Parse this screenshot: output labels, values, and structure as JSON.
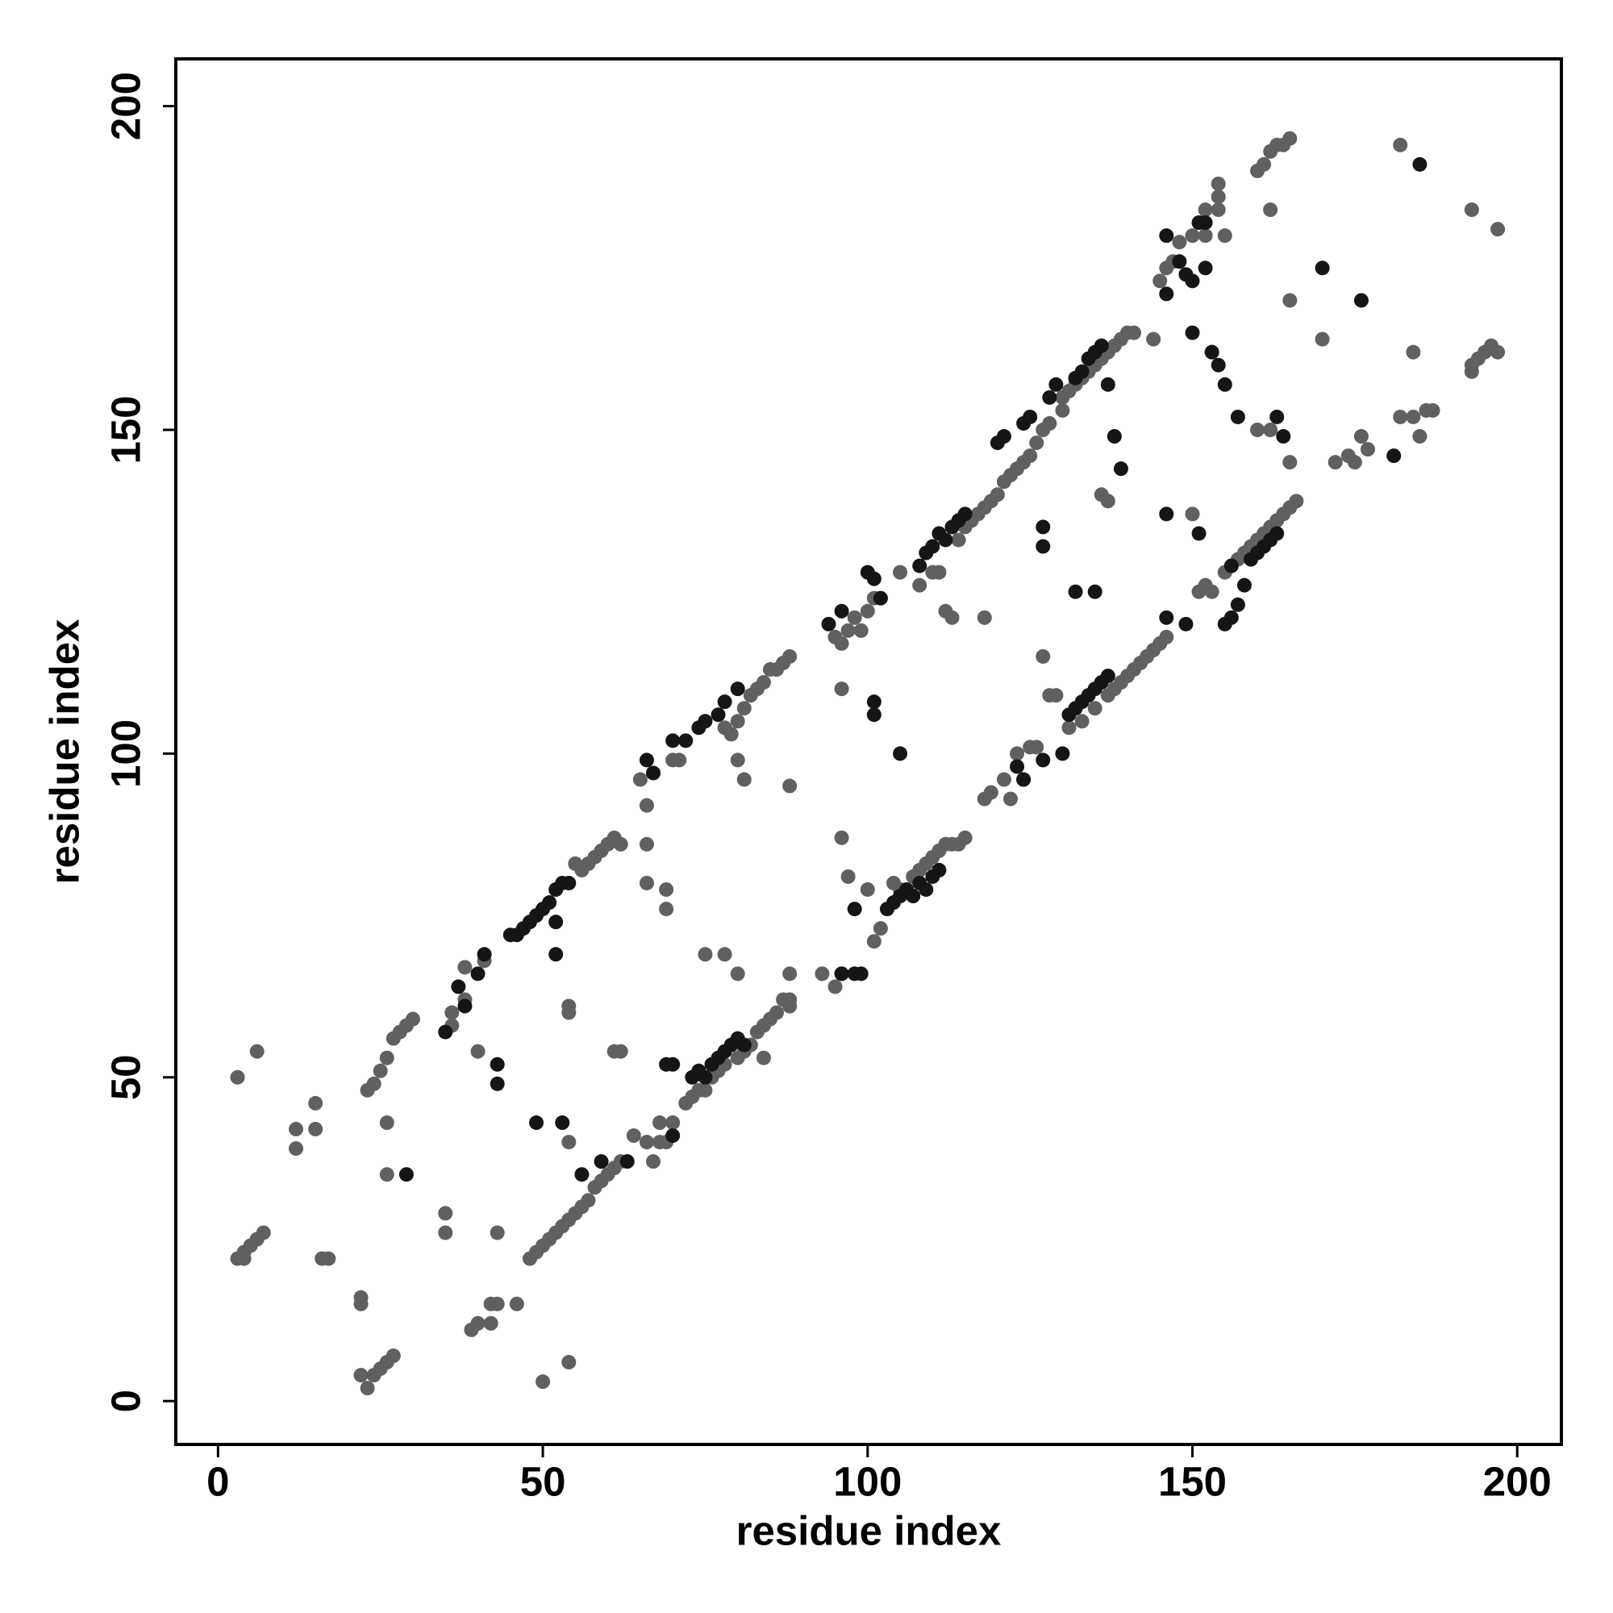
{
  "chart_data": {
    "type": "scatter",
    "x_label": "residue index",
    "y_label": "residue index",
    "xlim": [
      -6.5,
      206.8
    ],
    "ylim": [
      -6.7,
      207.3
    ],
    "xticks": [
      0,
      50,
      100,
      150,
      200
    ],
    "yticks": [
      0,
      50,
      100,
      150,
      200
    ],
    "series": [
      {
        "color": "#606060",
        "x": [
          3,
          4,
          5,
          6,
          7,
          4,
          3,
          6,
          12,
          12,
          15,
          15,
          16,
          17,
          22,
          22,
          22,
          23,
          24,
          25,
          26,
          27,
          23,
          24,
          25,
          26,
          27,
          28,
          29,
          30,
          26,
          26,
          35,
          35,
          36,
          36,
          38,
          38,
          39,
          40,
          40,
          41,
          42,
          43,
          42,
          43,
          46,
          48,
          49,
          50,
          51,
          52,
          53,
          54,
          55,
          56,
          57,
          58,
          59,
          60,
          61,
          62,
          50,
          54,
          54,
          54,
          54,
          61,
          62,
          55,
          56,
          57,
          58,
          59,
          60,
          61,
          62,
          66,
          66,
          65,
          67,
          66,
          69,
          69,
          70,
          67,
          68,
          68,
          69,
          70,
          66,
          64,
          75,
          78,
          80,
          72,
          73,
          74,
          75,
          76,
          77,
          78,
          80,
          81,
          82,
          83,
          84,
          85,
          86,
          87,
          88,
          88,
          84,
          88,
          78,
          79,
          80,
          81,
          82,
          83,
          84,
          85,
          86,
          87,
          88,
          71,
          79,
          80,
          81,
          88,
          93,
          95,
          96,
          95,
          96,
          97,
          98,
          99,
          100,
          101,
          102,
          96,
          96,
          97,
          100,
          101,
          102,
          104,
          105,
          107,
          108,
          109,
          110,
          111,
          112,
          113,
          114,
          115,
          105,
          108,
          110,
          111,
          112,
          113,
          118,
          114,
          115,
          116,
          117,
          118,
          119,
          120,
          121,
          122,
          123,
          124,
          125,
          118,
          119,
          121,
          122,
          124,
          123,
          125,
          126,
          127,
          128,
          129,
          126,
          127,
          128,
          130,
          130,
          131,
          132,
          133,
          134,
          135,
          136,
          137,
          138,
          139,
          140,
          141,
          136,
          137,
          131,
          133,
          135,
          137,
          138,
          139,
          140,
          141,
          142,
          143,
          144,
          145,
          146,
          144,
          148,
          147,
          146,
          145,
          150,
          151,
          152,
          152,
          154,
          154,
          154,
          155,
          151,
          152,
          153,
          155,
          156,
          157,
          158,
          159,
          160,
          161,
          162,
          163,
          164,
          165,
          166,
          160,
          161,
          162,
          163,
          164,
          165,
          162,
          165,
          165,
          162,
          150,
          153,
          160,
          170,
          172,
          174,
          175,
          176,
          177,
          182,
          184,
          185,
          184,
          186,
          187,
          182,
          193,
          194,
          195,
          196,
          197,
          197,
          193,
          193
        ],
        "y": [
          22,
          22,
          24,
          25,
          26,
          23,
          50,
          54,
          39,
          42,
          42,
          46,
          22,
          22,
          16,
          15,
          4,
          2,
          4,
          5,
          6,
          7,
          48,
          49,
          51,
          53,
          56,
          57,
          58,
          59,
          43,
          35,
          29,
          26,
          58,
          60,
          62,
          67,
          11,
          12,
          54,
          68,
          12,
          15,
          15,
          26,
          15,
          22,
          23,
          24,
          25,
          26,
          27,
          28,
          29,
          30,
          31,
          33,
          34,
          35,
          36,
          37,
          3,
          6,
          40,
          60,
          61,
          54,
          54,
          83,
          82,
          83,
          84,
          85,
          86,
          87,
          86,
          86,
          92,
          96,
          97,
          80,
          79,
          76,
          99,
          37,
          40,
          43,
          40,
          43,
          40,
          41,
          69,
          69,
          66,
          46,
          47,
          48,
          48,
          50,
          51,
          52,
          53,
          54,
          55,
          57,
          58,
          59,
          60,
          62,
          61,
          62,
          53,
          66,
          104,
          103,
          105,
          107,
          109,
          110,
          111,
          113,
          113,
          114,
          115,
          99,
          103,
          99,
          96,
          95,
          66,
          64,
          66,
          118,
          117,
          119,
          121,
          119,
          122,
          124,
          124,
          110,
          87,
          81,
          79,
          71,
          73,
          80,
          79,
          81,
          82,
          83,
          84,
          85,
          86,
          86,
          86,
          87,
          128,
          126,
          128,
          128,
          122,
          121,
          121,
          133,
          135,
          136,
          137,
          138,
          139,
          140,
          142,
          143,
          144,
          145,
          146,
          93,
          94,
          96,
          93,
          96,
          100,
          101,
          101,
          115,
          109,
          109,
          148,
          150,
          151,
          153,
          155,
          156,
          157,
          158,
          159,
          160,
          161,
          162,
          163,
          164,
          165,
          165,
          140,
          139,
          104,
          105,
          107,
          109,
          110,
          111,
          112,
          113,
          114,
          115,
          116,
          117,
          118,
          164,
          179,
          176,
          175,
          173,
          180,
          182,
          184,
          180,
          184,
          186,
          188,
          180,
          125,
          126,
          125,
          128,
          129,
          130,
          131,
          132,
          133,
          134,
          135,
          136,
          137,
          138,
          139,
          190,
          191,
          193,
          194,
          194,
          195,
          184,
          170,
          145,
          150,
          137,
          162,
          150,
          164,
          145,
          146,
          145,
          149,
          147,
          152,
          152,
          149,
          162,
          153,
          153,
          194,
          160,
          161,
          162,
          163,
          162,
          181,
          184,
          159
        ]
      },
      {
        "color": "#151515",
        "x": [
          29,
          35,
          37,
          38,
          40,
          41,
          43,
          43,
          45,
          46,
          47,
          48,
          49,
          50,
          51,
          52,
          53,
          54,
          52,
          52,
          49,
          53,
          56,
          59,
          63,
          67,
          66,
          70,
          72,
          74,
          75,
          77,
          78,
          80,
          70,
          73,
          74,
          75,
          76,
          77,
          78,
          79,
          80,
          81,
          69,
          70,
          94,
          96,
          100,
          101,
          102,
          98,
          99,
          96,
          98,
          101,
          101,
          103,
          104,
          105,
          106,
          107,
          108,
          109,
          110,
          111,
          105,
          108,
          109,
          110,
          111,
          112,
          113,
          114,
          115,
          120,
          121,
          124,
          125,
          123,
          124,
          127,
          127,
          127,
          128,
          129,
          130,
          131,
          132,
          133,
          134,
          135,
          136,
          137,
          132,
          133,
          134,
          135,
          136,
          137,
          138,
          139,
          132,
          135,
          146,
          146,
          149,
          150,
          151,
          152,
          152,
          153,
          154,
          155,
          150,
          148,
          149,
          146,
          146,
          155,
          156,
          157,
          158,
          159,
          160,
          161,
          162,
          163,
          163,
          164,
          170,
          176,
          181,
          185,
          157,
          156,
          151
        ],
        "y": [
          35,
          57,
          64,
          61,
          66,
          69,
          52,
          49,
          72,
          72,
          73,
          74,
          75,
          76,
          77,
          79,
          80,
          80,
          69,
          74,
          43,
          43,
          35,
          37,
          37,
          97,
          99,
          102,
          102,
          104,
          105,
          106,
          108,
          110,
          52,
          50,
          51,
          50,
          52,
          53,
          54,
          55,
          56,
          55,
          52,
          41,
          120,
          122,
          128,
          127,
          124,
          66,
          66,
          66,
          76,
          106,
          108,
          76,
          77,
          78,
          79,
          78,
          80,
          79,
          81,
          82,
          100,
          129,
          131,
          132,
          134,
          133,
          135,
          136,
          137,
          148,
          149,
          151,
          152,
          98,
          96,
          99,
          135,
          132,
          155,
          157,
          100,
          106,
          107,
          108,
          109,
          110,
          111,
          112,
          158,
          159,
          161,
          162,
          163,
          157,
          149,
          144,
          125,
          125,
          137,
          121,
          120,
          165,
          182,
          182,
          175,
          162,
          160,
          157,
          173,
          176,
          174,
          171,
          180,
          120,
          121,
          123,
          126,
          130,
          131,
          132,
          133,
          134,
          152,
          149,
          175,
          170,
          146,
          191,
          152,
          129,
          134
        ]
      }
    ]
  }
}
